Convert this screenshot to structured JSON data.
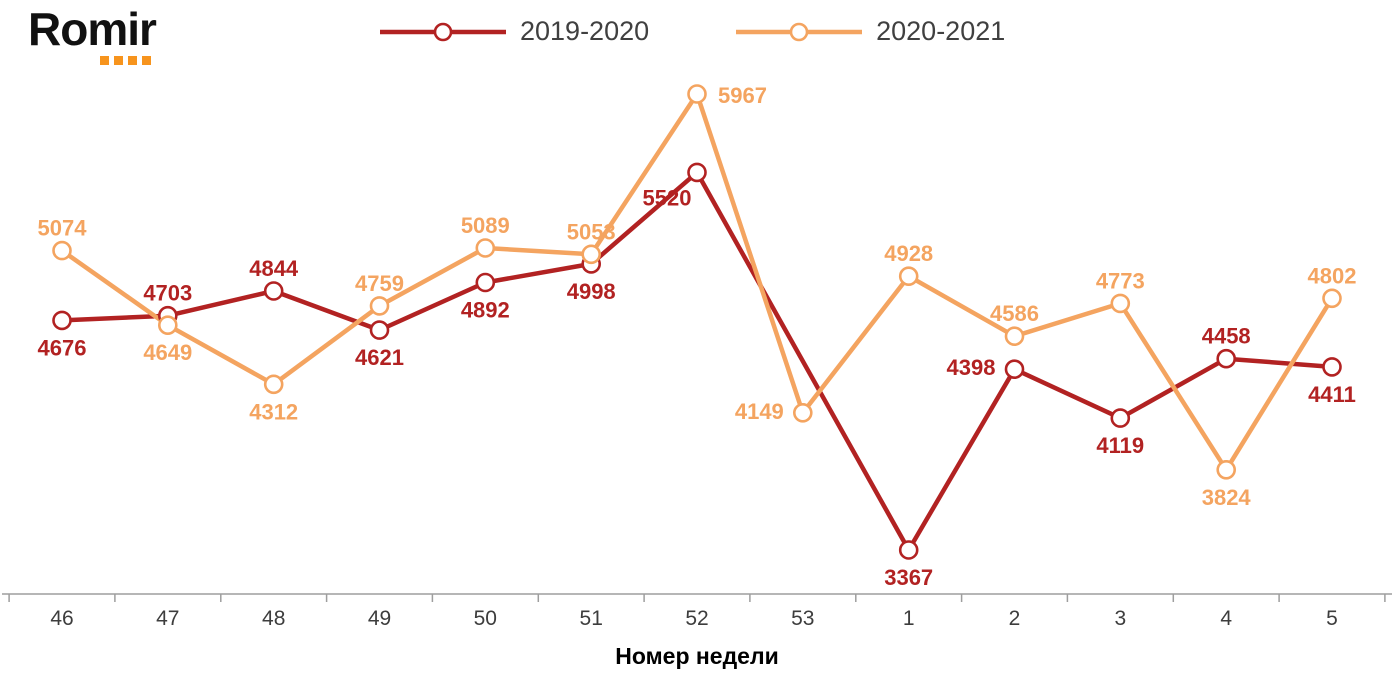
{
  "logo": {
    "text": "Romir",
    "dot_color": "#F7941D"
  },
  "legend": [
    {
      "label": "2019-2020",
      "color": "#B22222"
    },
    {
      "label": "2020-2021",
      "color": "#F4A460"
    }
  ],
  "chart_data": {
    "type": "line",
    "title": "",
    "xlabel": "Номер недели",
    "ylabel": "",
    "grid": false,
    "legend_position": "top",
    "categories": [
      "46",
      "47",
      "48",
      "49",
      "50",
      "51",
      "52",
      "53",
      "1",
      "2",
      "3",
      "4",
      "5"
    ],
    "series": [
      {
        "name": "2019-2020",
        "color": "#B22222",
        "values": [
          4676,
          4703,
          4844,
          4621,
          4892,
          4998,
          5520,
          null,
          3367,
          4398,
          4119,
          4458,
          4411
        ],
        "label_positions": [
          "below",
          "above",
          "above",
          "below",
          "below",
          "below",
          "below-left",
          null,
          "below",
          "left",
          "below",
          "above",
          "below"
        ]
      },
      {
        "name": "2020-2021",
        "color": "#F4A460",
        "values": [
          5074,
          4649,
          4312,
          4759,
          5089,
          5053,
          5967,
          4149,
          4928,
          4586,
          4773,
          3824,
          4802
        ],
        "label_positions": [
          "above",
          "below",
          "below",
          "above",
          "above",
          "above",
          "right",
          "left",
          "above",
          "above",
          "above",
          "below",
          "above"
        ]
      }
    ],
    "axis_color": "#9e9e9e",
    "tick_label_color": "#3d3d3d"
  }
}
